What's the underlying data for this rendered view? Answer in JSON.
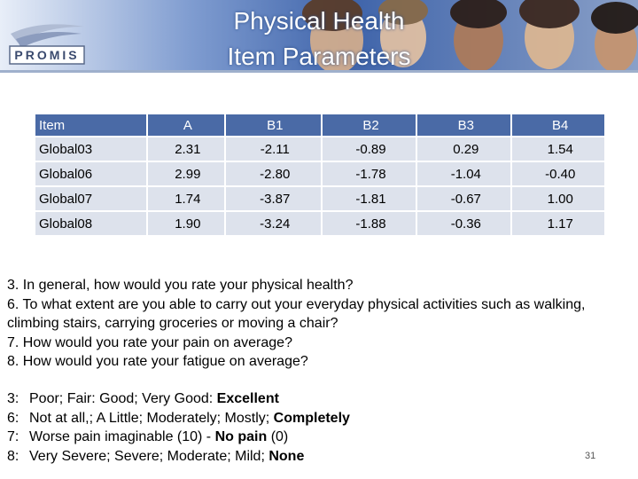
{
  "header": {
    "logo": "PROMIS",
    "title": [
      "Physical Health",
      "Item Parameters"
    ]
  },
  "table": {
    "columns": [
      "Item",
      "A",
      "B1",
      "B2",
      "B3",
      "B4"
    ],
    "rows": [
      [
        "Global03",
        "2.31",
        "-2.11",
        "-0.89",
        "0.29",
        "1.54"
      ],
      [
        "Global06",
        "2.99",
        "-2.80",
        "-1.78",
        "-1.04",
        "-0.40"
      ],
      [
        "Global07",
        "1.74",
        "-3.87",
        "-1.81",
        "-0.67",
        "1.00"
      ],
      [
        "Global08",
        "1.90",
        "-3.24",
        "-1.88",
        "-0.36",
        "1.17"
      ]
    ]
  },
  "questions": [
    "3.   In general, how would you rate your physical health?",
    "6.   To what extent are you able to carry out your everyday physical activities such as walking, climbing stairs, carrying groceries or moving a chair?",
    "7.  How would you rate your pain on average?",
    "8.  How would you rate your fatigue on average?"
  ],
  "answers": [
    {
      "label": "3:",
      "parts": [
        {
          "text": "Poor; Fair: Good; Very Good: "
        },
        {
          "text": "Excellent",
          "bold": true
        }
      ]
    },
    {
      "label": "6:",
      "parts": [
        {
          "text": "Not at all,; A Little; Moderately; Mostly; "
        },
        {
          "text": "Completely",
          "bold": true
        }
      ]
    },
    {
      "label": "7:",
      "parts": [
        {
          "text": "Worse pain imaginable (10) - "
        },
        {
          "text": "No pain",
          "bold": true
        },
        {
          "text": " (0)"
        }
      ]
    },
    {
      "label": "8:",
      "parts": [
        {
          "text": "Very Severe; Severe; Moderate; Mild; "
        },
        {
          "text": "None",
          "bold": true
        }
      ]
    }
  ],
  "page_number": "31"
}
